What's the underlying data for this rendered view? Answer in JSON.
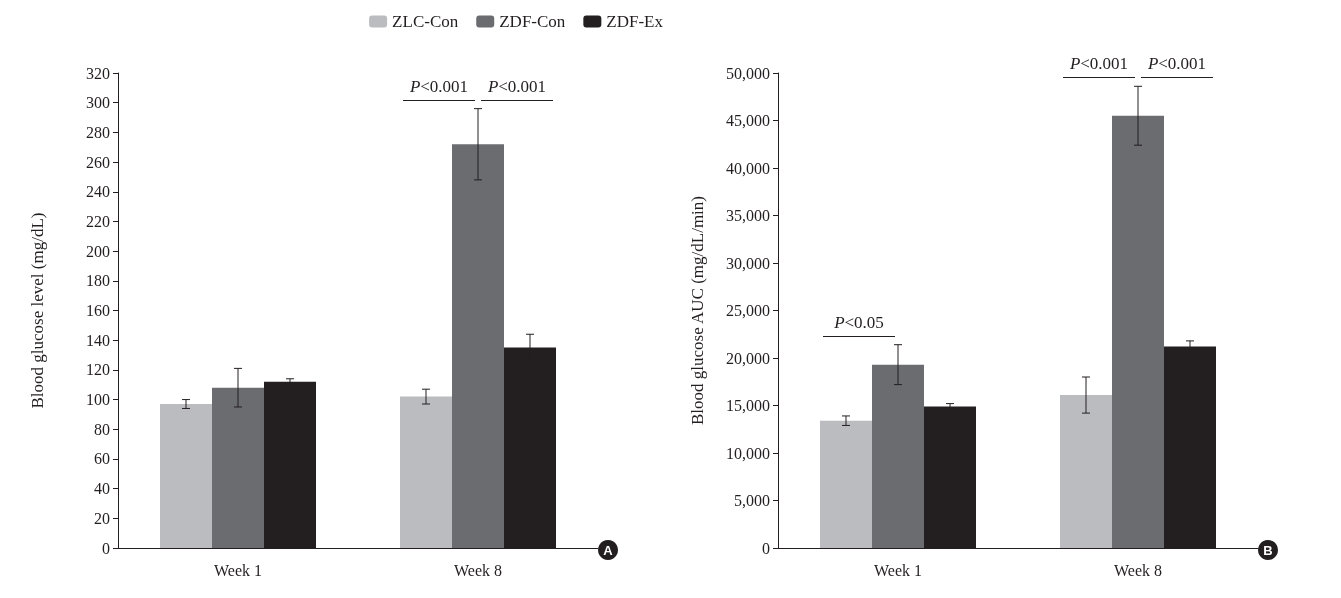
{
  "chart_data": [
    {
      "type": "bar",
      "categories": [
        "Week 1",
        "Week 8"
      ],
      "ylabel": "Blood glucose level (mg/dL)",
      "ylim": [
        0,
        320
      ],
      "yticks": [
        0,
        20,
        40,
        60,
        80,
        100,
        120,
        140,
        160,
        180,
        200,
        220,
        240,
        260,
        280,
        300,
        320
      ],
      "grid": false,
      "legend": "top right",
      "series": [
        {
          "name": "ZLC-Con",
          "color": "#bbbcc0",
          "values": [
            97,
            102
          ],
          "errors": [
            3,
            5
          ]
        },
        {
          "name": "ZDF-Con",
          "color": "#6b6c70",
          "values": [
            108,
            272
          ],
          "errors": [
            13,
            24
          ]
        },
        {
          "name": "ZDF-Ex",
          "color": "#231f20",
          "values": [
            112,
            135
          ],
          "errors": [
            2,
            9
          ]
        }
      ],
      "annotations": [
        "P<0.001",
        "P<0.001",
        "A"
      ]
    },
    {
      "type": "bar",
      "categories": [
        "Week 1",
        "Week 8"
      ],
      "ylabel": "Blood glucose AUC (mg/dL/min)",
      "ylim": [
        0,
        50000
      ],
      "yticks": [
        {
          "value": 0,
          "label": "0"
        },
        {
          "value": 5000,
          "label": "5,000"
        },
        {
          "value": 10000,
          "label": "10,000"
        },
        {
          "value": 15000,
          "label": "15,000"
        },
        {
          "value": 20000,
          "label": "20,000"
        },
        {
          "value": 25000,
          "label": "25,000"
        },
        {
          "value": 30000,
          "label": "30,000"
        },
        {
          "value": 35000,
          "label": "35,000"
        },
        {
          "value": 40000,
          "label": "40,000"
        },
        {
          "value": 45000,
          "label": "45,000"
        },
        {
          "value": 50000,
          "label": "50,000"
        }
      ],
      "grid": false,
      "legend": false,
      "series": [
        {
          "color": "#bbbcc0",
          "values": [
            13400,
            16100
          ],
          "errors": [
            500,
            1900
          ]
        },
        {
          "color": "#6b6c70",
          "values": [
            19300,
            45500
          ],
          "errors": [
            2100,
            3100
          ]
        },
        {
          "color": "#231f20",
          "values": [
            14900,
            21200
          ],
          "errors": [
            300,
            600
          ]
        }
      ],
      "annotations": [
        "P<0.05",
        "P<0.001",
        "P<0.001",
        "B"
      ]
    }
  ]
}
